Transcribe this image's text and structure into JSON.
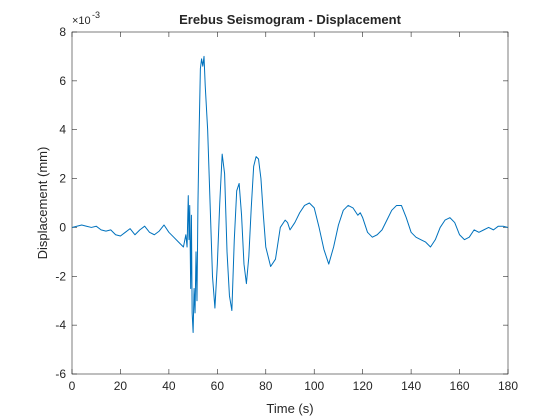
{
  "chart_data": {
    "type": "line",
    "title": "Erebus Seismogram - Displacement",
    "xlabel": "Time (s)",
    "ylabel": "Displacement (mm)",
    "y_multiplier": "×10",
    "y_exponent": "-3",
    "xlim": [
      0,
      180
    ],
    "xticks": [
      0,
      20,
      40,
      60,
      80,
      100,
      120,
      140,
      160,
      180
    ],
    "ylim": [
      -6,
      8
    ],
    "yticks": [
      -6,
      -4,
      -2,
      0,
      2,
      4,
      6,
      8
    ],
    "series": [
      {
        "color": "#0072bd",
        "x": [
          0,
          2,
          4,
          6,
          8,
          10,
          12,
          14,
          16,
          18,
          20,
          22,
          24,
          26,
          28,
          30,
          32,
          34,
          36,
          38,
          40,
          42,
          44,
          46,
          47,
          47.5,
          48,
          48.3,
          48.6,
          49,
          49.3,
          49.6,
          50,
          50.4,
          50.8,
          51.2,
          51.6,
          52,
          52.5,
          53,
          53.5,
          54,
          54.5,
          55,
          56,
          57,
          58,
          59,
          60,
          61,
          62,
          63,
          64,
          65,
          66,
          67,
          68,
          69,
          70,
          71,
          72,
          73,
          74,
          75,
          76,
          77,
          78,
          79,
          80,
          82,
          84,
          86,
          88,
          89,
          90,
          92,
          94,
          96,
          98,
          100,
          102,
          104,
          106,
          108,
          110,
          112,
          114,
          116,
          118,
          119,
          120,
          122,
          124,
          126,
          128,
          130,
          132,
          134,
          136,
          138,
          140,
          142,
          144,
          146,
          148,
          150,
          152,
          154,
          156,
          158,
          160,
          162,
          164,
          166,
          168,
          170,
          172,
          174,
          176,
          178,
          180
        ],
        "values": [
          0,
          0.05,
          0.1,
          0.05,
          0,
          0.05,
          -0.1,
          -0.15,
          -0.1,
          -0.3,
          -0.35,
          -0.2,
          -0.05,
          -0.3,
          -0.1,
          0.05,
          -0.2,
          -0.3,
          -0.15,
          0.1,
          -0.2,
          -0.4,
          -0.6,
          -0.8,
          -0.3,
          -0.8,
          1.3,
          -0.5,
          0.9,
          -2.5,
          0.5,
          -3.5,
          -4.3,
          -2.5,
          -3.5,
          -1,
          -3,
          1,
          4,
          6.5,
          6.9,
          6.6,
          7,
          5.8,
          4,
          1,
          -2,
          -3.3,
          -1.5,
          1,
          3,
          2.2,
          -1,
          -2.8,
          -3.4,
          -0.5,
          1.5,
          1.8,
          0.5,
          -1.5,
          -2.3,
          -1.2,
          0.8,
          2.5,
          2.9,
          2.8,
          2,
          0.5,
          -0.8,
          -1.6,
          -1.3,
          0,
          0.3,
          0.2,
          -0.1,
          0.2,
          0.6,
          0.9,
          1,
          0.8,
          0,
          -0.9,
          -1.5,
          -0.8,
          0.1,
          0.7,
          0.9,
          0.8,
          0.5,
          0.6,
          0.4,
          -0.2,
          -0.4,
          -0.3,
          -0.1,
          0.3,
          0.7,
          0.9,
          0.9,
          0.4,
          -0.2,
          -0.4,
          -0.5,
          -0.6,
          -0.8,
          -0.5,
          0,
          0.3,
          0.4,
          0.2,
          -0.3,
          -0.5,
          -0.4,
          -0.1,
          -0.2,
          -0.1,
          0,
          -0.1,
          0.05,
          0.05,
          0
        ]
      }
    ]
  }
}
